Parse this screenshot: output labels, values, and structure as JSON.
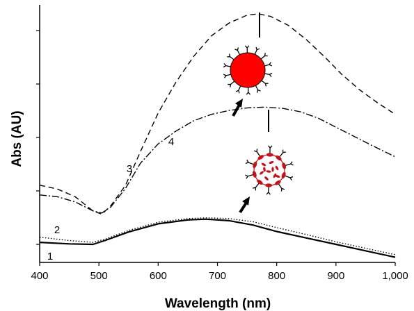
{
  "chart_data": {
    "type": "line",
    "xlabel": "Wavelength (nm)",
    "ylabel": "Abs (AU)",
    "xlim": [
      400,
      1000
    ],
    "ylim": [
      0,
      1
    ],
    "x_ticks": [
      400,
      500,
      600,
      700,
      800,
      900,
      1000
    ],
    "x_tick_labels": [
      "400",
      "500",
      "600",
      "700",
      "800",
      "900",
      "1,000"
    ],
    "y_ticks_unlabeled": 6,
    "grid": false,
    "legend": "none",
    "series": [
      {
        "label": "1",
        "style": "solid",
        "x": [
          400,
          450,
          490,
          510,
          550,
          600,
          650,
          680,
          720,
          760,
          800,
          850,
          900,
          950,
          1000
        ],
        "y": [
          0.078,
          0.072,
          0.07,
          0.085,
          0.118,
          0.15,
          0.165,
          0.168,
          0.162,
          0.145,
          0.12,
          0.095,
          0.07,
          0.045,
          0.02
        ]
      },
      {
        "label": "2",
        "style": "dotted",
        "x": [
          400,
          450,
          490,
          510,
          550,
          600,
          650,
          680,
          720,
          760,
          800,
          850,
          900,
          950,
          1000
        ],
        "y": [
          0.098,
          0.085,
          0.078,
          0.09,
          0.124,
          0.156,
          0.17,
          0.173,
          0.17,
          0.158,
          0.135,
          0.108,
          0.08,
          0.055,
          0.03
        ]
      },
      {
        "label": "3",
        "style": "dashed",
        "x": [
          400,
          430,
          460,
          490,
          505,
          520,
          545,
          570,
          600,
          630,
          660,
          690,
          720,
          750,
          770,
          790,
          820,
          850,
          880,
          910,
          940,
          970,
          1000
        ],
        "y": [
          0.3,
          0.285,
          0.255,
          0.2,
          0.187,
          0.22,
          0.3,
          0.43,
          0.58,
          0.7,
          0.8,
          0.88,
          0.93,
          0.96,
          0.965,
          0.955,
          0.92,
          0.865,
          0.8,
          0.73,
          0.67,
          0.62,
          0.575
        ]
      },
      {
        "label": "4",
        "style": "dash-dot",
        "x": [
          400,
          430,
          460,
          490,
          505,
          520,
          545,
          570,
          600,
          630,
          660,
          690,
          720,
          750,
          780,
          810,
          840,
          870,
          900,
          930,
          960,
          1000
        ],
        "y": [
          0.262,
          0.255,
          0.235,
          0.2,
          0.192,
          0.215,
          0.288,
          0.385,
          0.46,
          0.51,
          0.55,
          0.575,
          0.59,
          0.6,
          0.603,
          0.598,
          0.585,
          0.56,
          0.525,
          0.49,
          0.455,
          0.41
        ]
      }
    ],
    "colors": {
      "axis": "#000000",
      "particle_red": "#ff0000",
      "particle_dark_red": "#c0141b",
      "ligand": "#000000"
    }
  }
}
